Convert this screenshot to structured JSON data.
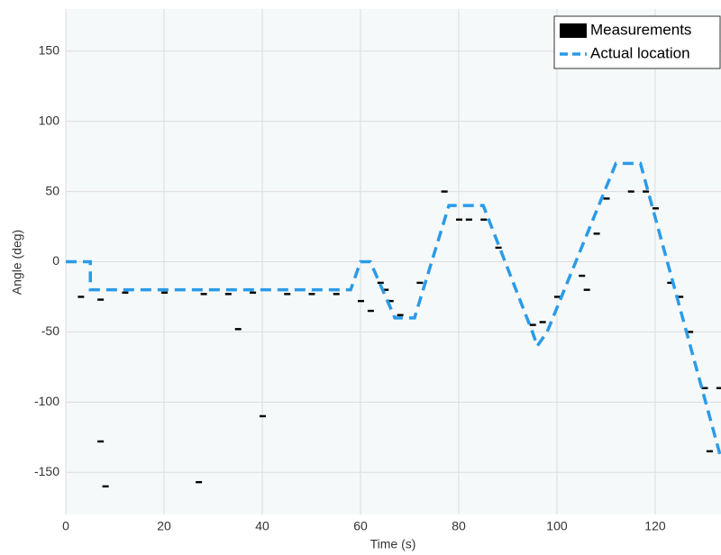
{
  "chart_data": {
    "type": "line",
    "xlabel": "Time (s)",
    "ylabel": "Angle (deg)",
    "xlim": [
      0,
      133.4
    ],
    "ylim": [
      -180,
      180
    ],
    "xticks": [
      0,
      20,
      40,
      60,
      80,
      100,
      120
    ],
    "yticks": [
      -150,
      -100,
      -50,
      0,
      50,
      100,
      150
    ],
    "grid": true,
    "legend": "upper right",
    "series": [
      {
        "name": "Measurements",
        "type": "dash",
        "color": "#000000",
        "x": [
          3,
          7,
          12,
          20,
          28,
          33,
          38,
          45,
          50,
          55,
          7,
          8,
          27,
          35,
          40,
          60,
          62,
          64,
          65,
          66,
          68,
          72,
          77,
          80,
          82,
          85,
          88,
          95,
          97,
          100,
          105,
          106,
          108,
          110,
          115,
          118,
          120,
          123,
          125,
          127,
          130,
          131,
          133
        ],
        "values": [
          -25,
          -27,
          -22,
          -22,
          -23,
          -23,
          -22,
          -23,
          -23,
          -23,
          -128,
          -160,
          -157,
          -48,
          -110,
          -28,
          -35,
          -15,
          -20,
          -28,
          -38,
          -15,
          50,
          30,
          30,
          30,
          10,
          -45,
          -43,
          -25,
          -10,
          -20,
          20,
          45,
          50,
          50,
          38,
          -15,
          -25,
          -50,
          -90,
          -135,
          -90
        ]
      },
      {
        "name": "Actual location",
        "type": "line",
        "color": "#2b9be8",
        "x": [
          0,
          5,
          5,
          58,
          60,
          62,
          67,
          71,
          78,
          85,
          95,
          96,
          98,
          112,
          117,
          133.4
        ],
        "values": [
          0,
          0,
          -20,
          -20,
          0,
          0,
          -40,
          -40,
          40,
          40,
          -50,
          -60,
          -50,
          70,
          70,
          -140
        ]
      }
    ]
  }
}
